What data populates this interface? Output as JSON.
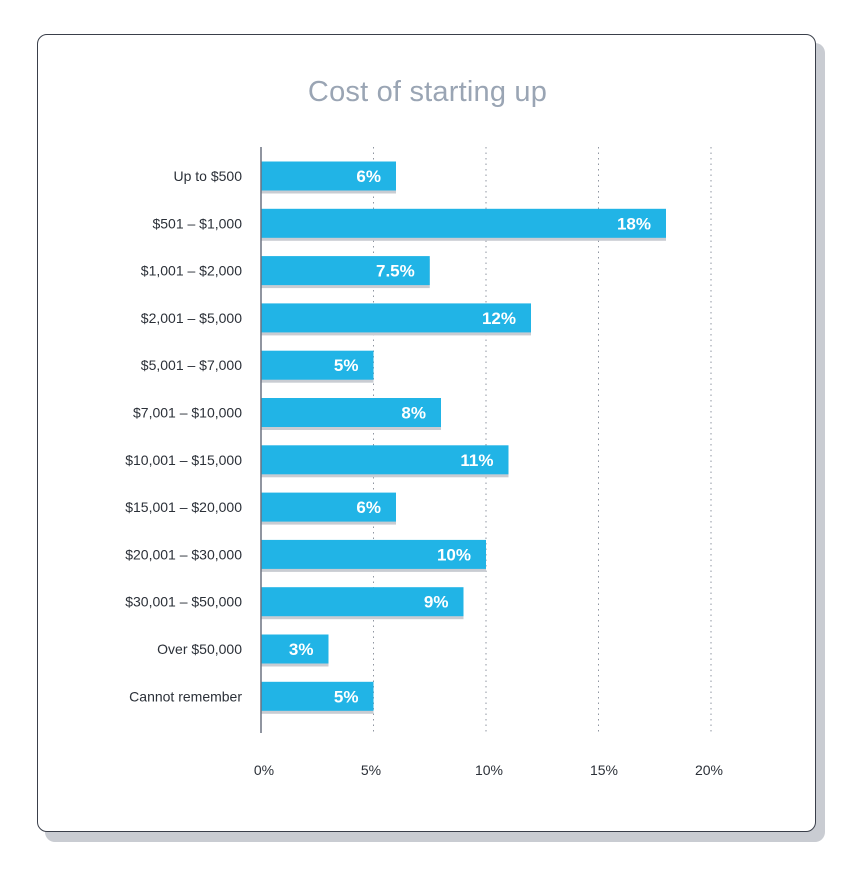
{
  "chart_data": {
    "type": "bar",
    "orientation": "horizontal",
    "title": "Cost of starting up",
    "xlabel": "",
    "ylabel": "",
    "categories": [
      "Up to $500",
      "$501 – $1,000",
      "$1,001 – $2,000",
      "$2,001 – $5,000",
      "$5,001 – $7,000",
      "$7,001 – $10,000",
      "$10,001 – $15,000",
      "$15,001 – $20,000",
      "$20,001 – $30,000",
      "$30,001 – $50,000",
      "Over $50,000",
      "Cannot remember"
    ],
    "values": [
      6,
      18,
      7.5,
      12,
      5,
      8,
      11,
      6,
      10,
      9,
      3,
      5
    ],
    "value_labels": [
      "6%",
      "18%",
      "7.5%",
      "12%",
      "5%",
      "8%",
      "11%",
      "6%",
      "10%",
      "9%",
      "3%",
      "5%"
    ],
    "xlim": [
      0,
      20
    ],
    "ticks": [
      0,
      5,
      10,
      15,
      20
    ],
    "tick_labels": [
      "0%",
      "5%",
      "10%",
      "15%",
      "20%"
    ],
    "grid": true,
    "bar_color": "#21b4e6",
    "bar_shadow_color": "#c9ccd2"
  }
}
